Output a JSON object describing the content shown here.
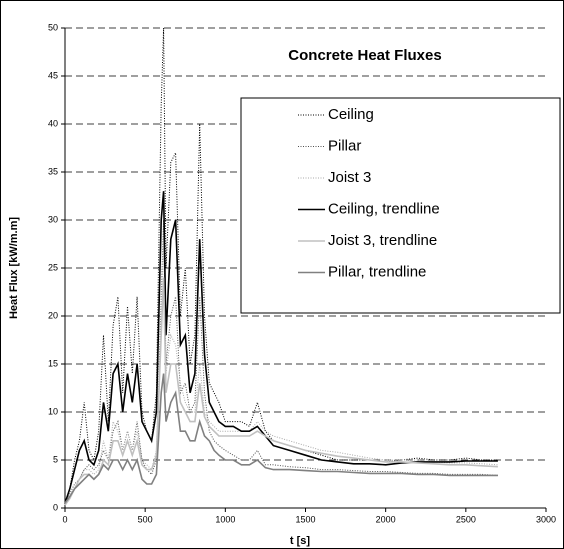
{
  "chart_data": {
    "type": "line",
    "title": "Concrete Heat Fluxes",
    "x_label": "t [s]",
    "y_label": "Heat Flux [kW/m.m]",
    "x": [
      0,
      30,
      60,
      90,
      120,
      150,
      180,
      210,
      240,
      270,
      300,
      330,
      360,
      390,
      420,
      450,
      480,
      510,
      540,
      570,
      600,
      615,
      630,
      660,
      690,
      720,
      750,
      780,
      810,
      840,
      870,
      900,
      930,
      960,
      1000,
      1050,
      1100,
      1150,
      1200,
      1250,
      1300,
      1400,
      1500,
      1600,
      1700,
      1800,
      1900,
      2000,
      2100,
      2200,
      2300,
      2400,
      2500,
      2600,
      2700
    ],
    "series": [
      {
        "name": "Ceiling",
        "color": "#000000",
        "style": "dotted",
        "values": [
          0.5,
          2,
          5,
          7,
          11,
          6,
          5,
          8,
          18,
          9,
          19,
          22,
          12,
          21,
          14,
          22,
          10,
          8,
          7,
          12,
          42,
          50,
          25,
          36,
          37,
          20,
          25,
          15,
          18,
          40,
          20,
          13,
          12,
          11,
          9,
          9,
          9,
          8.5,
          11,
          8,
          7,
          6.5,
          6,
          5.5,
          5,
          5,
          5,
          4.8,
          5,
          5.2,
          5,
          5,
          5.2,
          5,
          5
        ]
      },
      {
        "name": "Pillar",
        "color": "#505050",
        "style": "dotted",
        "values": [
          0.5,
          1.5,
          2.5,
          3,
          4,
          4.5,
          4,
          4.5,
          6,
          5,
          8,
          9,
          6,
          8,
          6,
          9,
          5,
          4,
          3.5,
          5,
          22,
          30,
          15,
          20,
          22,
          12,
          13,
          10,
          11,
          22,
          12,
          8,
          7,
          6.5,
          6,
          5.5,
          5,
          5,
          6,
          4.5,
          4.5,
          4.3,
          4.2,
          4,
          4,
          3.9,
          3.8,
          3.8,
          3.7,
          3.6,
          3.6,
          3.5,
          3.5,
          3.5,
          3.4
        ]
      },
      {
        "name": "Joist 3",
        "color": "#a8a8a8",
        "style": "dotted",
        "values": [
          0.3,
          1,
          2,
          3,
          4,
          4,
          3.5,
          4,
          7,
          5,
          9,
          8,
          6,
          8,
          6,
          8,
          5,
          4.5,
          4,
          6,
          20,
          28,
          14,
          18,
          17,
          13,
          11,
          10,
          10,
          15,
          10,
          9,
          8.5,
          8,
          8,
          8,
          8,
          8,
          9,
          8,
          7.5,
          7,
          6.5,
          6,
          5.8,
          5.5,
          5.2,
          5,
          5,
          5,
          4.8,
          4.7,
          4.7,
          4.6,
          4.5
        ]
      },
      {
        "name": "Ceiling, trendline",
        "color": "#000000",
        "style": "solid",
        "values": [
          0.5,
          2,
          4,
          6,
          7,
          5,
          4.5,
          6,
          11,
          8,
          14,
          15,
          10,
          14,
          11,
          15,
          9,
          8,
          7,
          10,
          30,
          33,
          18,
          28,
          30,
          17,
          18,
          12,
          14,
          28,
          16,
          11,
          10,
          9,
          8.5,
          8.5,
          8,
          8,
          8.5,
          7.5,
          6.5,
          6,
          5.5,
          5,
          4.8,
          4.6,
          4.6,
          4.5,
          4.7,
          4.8,
          4.8,
          4.8,
          4.9,
          4.9,
          4.9
        ]
      },
      {
        "name": "Joist 3, trendline",
        "color": "#c0c0c0",
        "style": "solid",
        "values": [
          0.3,
          1,
          2,
          3,
          3.5,
          3.5,
          3,
          3.5,
          5,
          4.5,
          7,
          7,
          5.5,
          7,
          5.5,
          7,
          4.5,
          4,
          4,
          5.5,
          18,
          24,
          12,
          15,
          15,
          11,
          10,
          9,
          9,
          13,
          9.5,
          8.5,
          8,
          7.5,
          7.5,
          7.5,
          7.5,
          7.5,
          8,
          7.5,
          7,
          6.5,
          6,
          5.7,
          5.4,
          5.2,
          5,
          4.8,
          4.8,
          4.7,
          4.6,
          4.5,
          4.5,
          4.4,
          4.3
        ]
      },
      {
        "name": "Pillar, trendline",
        "color": "#808080",
        "style": "solid",
        "values": [
          0.5,
          1.2,
          2,
          2.5,
          3,
          3.5,
          3,
          3.5,
          4.5,
          4,
          5,
          5,
          4,
          5,
          4,
          5,
          3,
          2.5,
          2.5,
          3.5,
          12,
          14,
          9,
          11,
          12,
          8,
          8,
          7,
          7,
          9,
          7.5,
          7,
          6,
          5.5,
          5,
          5,
          4.5,
          4.5,
          5,
          4.2,
          4,
          4,
          3.9,
          3.8,
          3.8,
          3.7,
          3.6,
          3.6,
          3.6,
          3.5,
          3.5,
          3.4,
          3.4,
          3.4,
          3.4
        ]
      }
    ],
    "xlim": [
      0,
      3000
    ],
    "xticks": [
      0,
      500,
      1000,
      1500,
      2000,
      2500,
      3000
    ],
    "ylim": [
      0,
      50
    ],
    "yticks": [
      0,
      5,
      10,
      15,
      20,
      25,
      30,
      35,
      40,
      45,
      50
    ],
    "grid": true,
    "legend": "upper right"
  }
}
